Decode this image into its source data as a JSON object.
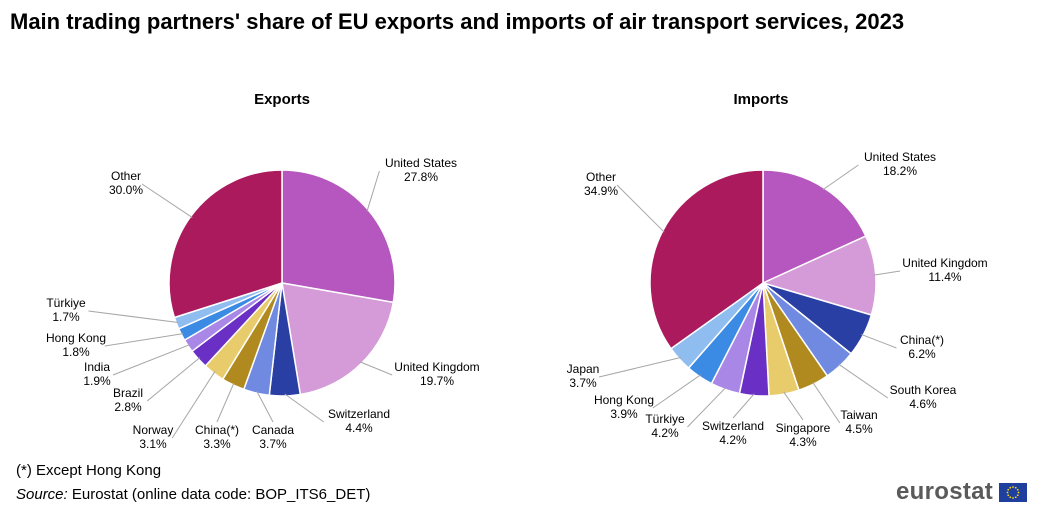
{
  "title": "Main trading partners' share of EU exports and imports of air transport services, 2023",
  "footnote": "(*) Except Hong Kong",
  "source": {
    "label": "Source:",
    "text": "Eurostat (online data code: BOP_ITS6_DET)"
  },
  "logo_text": "eurostat",
  "chart_data": [
    {
      "type": "pie",
      "title": "Exports",
      "unit": "%",
      "slices": [
        {
          "label": "United States",
          "value": 27.8,
          "color": "#b656bf"
        },
        {
          "label": "United Kingdom",
          "value": 19.7,
          "color": "#d49bd8"
        },
        {
          "label": "Switzerland",
          "value": 4.4,
          "color": "#2a3fa3"
        },
        {
          "label": "Canada",
          "value": 3.7,
          "color": "#6f8ae0"
        },
        {
          "label": "China(*)",
          "value": 3.3,
          "color": "#b08a1f"
        },
        {
          "label": "Norway",
          "value": 3.1,
          "color": "#e8cb6a"
        },
        {
          "label": "Brazil",
          "value": 2.8,
          "color": "#6a2fc4"
        },
        {
          "label": "India",
          "value": 1.9,
          "color": "#a987e6"
        },
        {
          "label": "Hong Kong",
          "value": 1.8,
          "color": "#3b8ae3"
        },
        {
          "label": "Türkiye",
          "value": 1.7,
          "color": "#8fbdf0"
        },
        {
          "label": "Other",
          "value": 30.0,
          "color": "#aa1a5c"
        }
      ]
    },
    {
      "type": "pie",
      "title": "Imports",
      "unit": "%",
      "slices": [
        {
          "label": "United States",
          "value": 18.2,
          "color": "#b656bf"
        },
        {
          "label": "United Kingdom",
          "value": 11.4,
          "color": "#d49bd8"
        },
        {
          "label": "China(*)",
          "value": 6.2,
          "color": "#2a3fa3"
        },
        {
          "label": "South Korea",
          "value": 4.6,
          "color": "#6f8ae0"
        },
        {
          "label": "Taiwan",
          "value": 4.5,
          "color": "#b08a1f"
        },
        {
          "label": "Singapore",
          "value": 4.3,
          "color": "#e8cb6a"
        },
        {
          "label": "Switzerland",
          "value": 4.2,
          "color": "#6a2fc4"
        },
        {
          "label": "Türkiye",
          "value": 4.2,
          "color": "#a987e6"
        },
        {
          "label": "Hong Kong",
          "value": 3.9,
          "color": "#3b8ae3"
        },
        {
          "label": "Japan",
          "value": 3.7,
          "color": "#8fbdf0"
        },
        {
          "label": "Other",
          "value": 34.9,
          "color": "#aa1a5c"
        }
      ]
    }
  ]
}
